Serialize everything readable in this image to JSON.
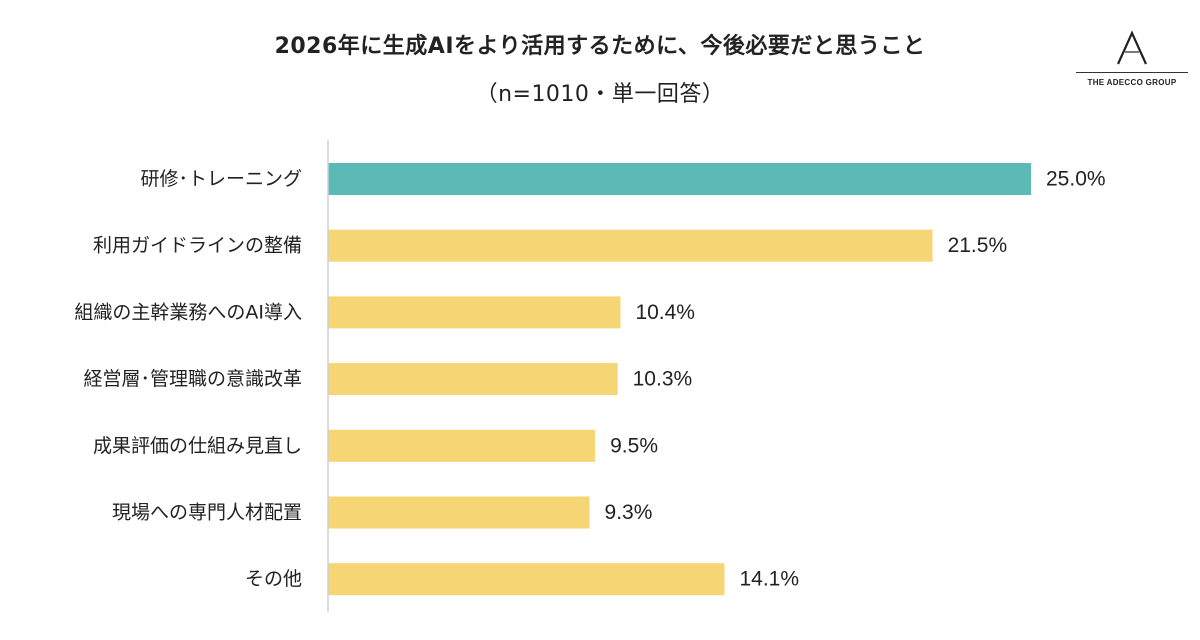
{
  "title": "2026年に生成AIをより活用するために、今後必要だと思うこと",
  "subtitle": "（n=1010・単一回答）",
  "logo": {
    "mark": "A",
    "text": "THE ADECCO GROUP"
  },
  "colors": {
    "highlight": "#5bbab5",
    "bar": "#f6d574",
    "axis": "#d0d0d0"
  },
  "chart_data": {
    "type": "bar",
    "orientation": "horizontal",
    "categories": [
      "研修･トレーニング",
      "利用ガイドラインの整備",
      "組織の主幹業務へのAI導入",
      "経営層･管理職の意識改革",
      "成果評価の仕組み見直し",
      "現場への専門人材配置",
      "その他"
    ],
    "values": [
      25.0,
      21.5,
      10.4,
      10.3,
      9.5,
      9.3,
      14.1
    ],
    "value_labels": [
      "25.0%",
      "21.5%",
      "10.4%",
      "10.3%",
      "9.5%",
      "9.3%",
      "14.1%"
    ],
    "unit": "%",
    "highlight_index": 0,
    "xlim": [
      0,
      25.0
    ],
    "grid": false,
    "legend": false
  }
}
